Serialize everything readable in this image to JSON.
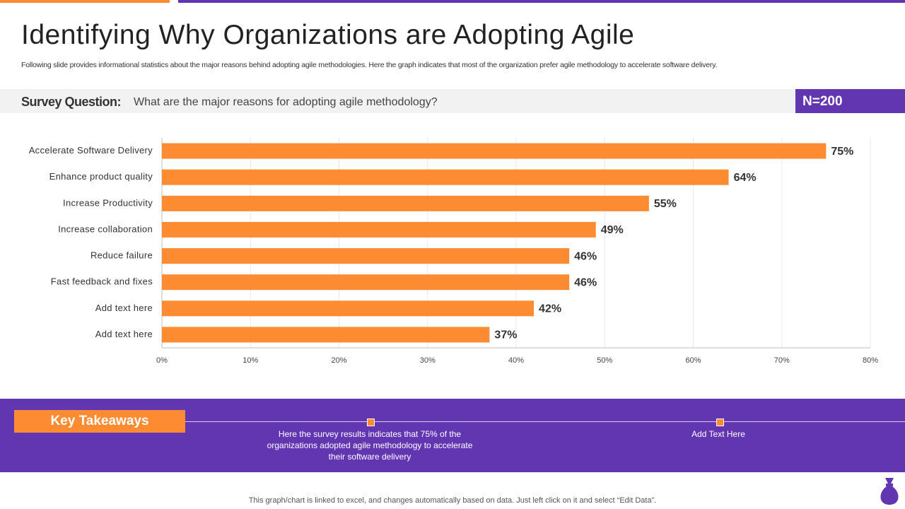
{
  "header": {
    "title": "Identifying Why Organizations are Adopting Agile",
    "subtitle": "Following slide provides informational statistics about the major reasons behind adopting agile methodologies. Here the graph indicates that most of the organization prefer agile methodology to accelerate software delivery."
  },
  "survey": {
    "label": "Survey Question:",
    "question": "What are the major reasons for adopting agile methodology?",
    "n": "N=200"
  },
  "chart_data": {
    "type": "bar",
    "orientation": "horizontal",
    "categories": [
      "Accelerate Software Delivery",
      "Enhance product quality",
      "Increase Productivity",
      "Increase collaboration",
      "Reduce failure",
      "Fast feedback and fixes",
      "Add text here",
      "Add text here"
    ],
    "values": [
      75,
      64,
      55,
      49,
      46,
      46,
      42,
      37
    ],
    "value_labels": [
      "75%",
      "64%",
      "55%",
      "49%",
      "46%",
      "46%",
      "42%",
      "37%"
    ],
    "color": "#fd8b31",
    "xlim": [
      0,
      80
    ],
    "xticks": [
      {
        "value": 0,
        "label": "0%"
      },
      {
        "value": 10,
        "label": "10%"
      },
      {
        "value": 20,
        "label": "20%"
      },
      {
        "value": 30,
        "label": "30%"
      },
      {
        "value": 40,
        "label": "40%"
      },
      {
        "value": 50,
        "label": "50%"
      },
      {
        "value": 60,
        "label": "60%"
      },
      {
        "value": 70,
        "label": "70%"
      },
      {
        "value": 80,
        "label": "80%"
      }
    ],
    "grid": true
  },
  "takeaways": {
    "title": "Key Takeaways",
    "items": [
      "Here the survey results indicates that 75% of the organizations adopted agile methodology to accelerate their software delivery",
      "Add Text Here"
    ]
  },
  "footer": "This graph/chart is linked to excel, and changes automatically based on data. Just left click on it and select “Edit Data”."
}
